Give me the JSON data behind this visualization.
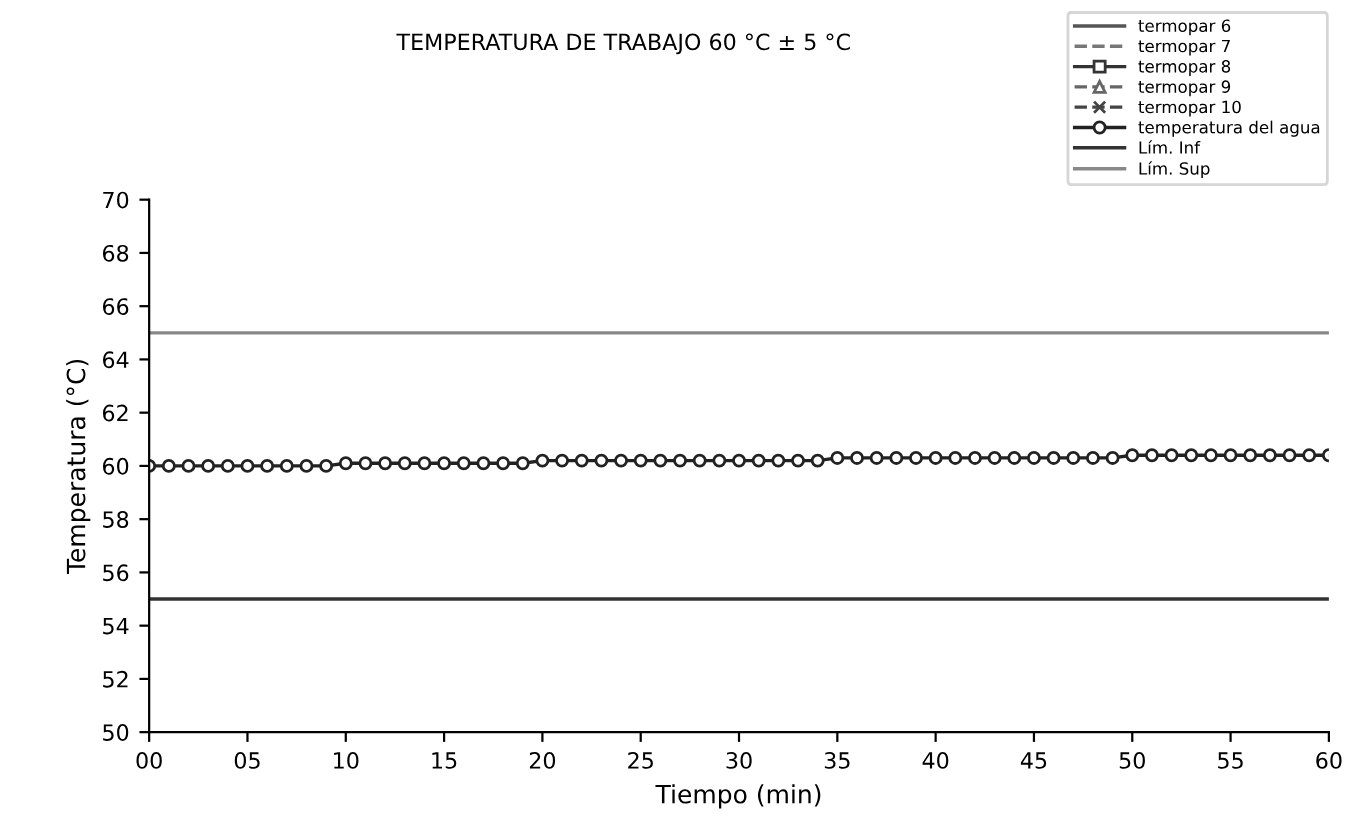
{
  "chart_data": {
    "type": "line",
    "title": "TEMPERATURA DE TRABAJO 60 °C ± 5 °C",
    "xlabel": "Tiempo (min)",
    "ylabel": "Temperatura (°C)",
    "x": [
      0,
      1,
      2,
      3,
      4,
      5,
      6,
      7,
      8,
      9,
      10,
      11,
      12,
      13,
      14,
      15,
      16,
      17,
      18,
      19,
      20,
      21,
      22,
      23,
      24,
      25,
      26,
      27,
      28,
      29,
      30,
      31,
      32,
      33,
      34,
      35,
      36,
      37,
      38,
      39,
      40,
      41,
      42,
      43,
      44,
      45,
      46,
      47,
      48,
      49,
      50,
      51,
      52,
      53,
      54,
      55,
      56,
      57,
      58,
      59,
      60
    ],
    "xlim": [
      0,
      60
    ],
    "xticks": [
      {
        "value": 0,
        "label": "00"
      },
      {
        "value": 5,
        "label": "05"
      },
      10,
      15,
      20,
      25,
      30,
      35,
      40,
      45,
      50,
      55,
      60
    ],
    "ylim": [
      50,
      70
    ],
    "yticks": [
      50,
      52,
      54,
      56,
      58,
      60,
      62,
      64,
      66,
      68,
      70
    ],
    "grid": false,
    "legend": "top right",
    "series": [
      {
        "name": "termopar 6",
        "color": "#555555",
        "marker": "none",
        "line_style": "solid",
        "values": [
          null,
          null,
          null,
          null,
          null,
          null,
          null,
          null,
          null,
          null,
          null,
          null,
          null,
          null,
          null,
          null,
          null,
          null,
          null,
          null,
          null,
          null,
          null,
          null,
          null,
          null,
          null,
          null,
          null,
          null,
          null,
          null,
          null,
          null,
          null,
          null,
          null,
          null,
          null,
          null,
          null,
          null,
          null,
          null,
          null,
          null,
          null,
          null,
          null,
          null,
          null,
          null,
          null,
          null,
          null,
          null,
          null,
          null,
          null,
          null,
          null
        ]
      },
      {
        "name": "termopar 7",
        "color": "#777777",
        "marker": "none",
        "line_style": "dashed",
        "values": [
          null,
          null,
          null,
          null,
          null,
          null,
          null,
          null,
          null,
          null,
          null,
          null,
          null,
          null,
          null,
          null,
          null,
          null,
          null,
          null,
          null,
          null,
          null,
          null,
          null,
          null,
          null,
          null,
          null,
          null,
          null,
          null,
          null,
          null,
          null,
          null,
          null,
          null,
          null,
          null,
          null,
          null,
          null,
          null,
          null,
          null,
          null,
          null,
          null,
          null,
          null,
          null,
          null,
          null,
          null,
          null,
          null,
          null,
          null,
          null,
          null
        ]
      },
      {
        "name": "termopar 8",
        "color": "#333333",
        "marker": "square",
        "line_style": "solid",
        "values": [
          null,
          null,
          null,
          null,
          null,
          null,
          null,
          null,
          null,
          null,
          null,
          null,
          null,
          null,
          null,
          null,
          null,
          null,
          null,
          null,
          null,
          null,
          null,
          null,
          null,
          null,
          null,
          null,
          null,
          null,
          null,
          null,
          null,
          null,
          null,
          null,
          null,
          null,
          null,
          null,
          null,
          null,
          null,
          null,
          null,
          null,
          null,
          null,
          null,
          null,
          null,
          null,
          null,
          null,
          null,
          null,
          null,
          null,
          null,
          null,
          null
        ]
      },
      {
        "name": "termopar 9",
        "color": "#666666",
        "marker": "triangle",
        "line_style": "dashed",
        "values": [
          null,
          null,
          null,
          null,
          null,
          null,
          null,
          null,
          null,
          null,
          null,
          null,
          null,
          null,
          null,
          null,
          null,
          null,
          null,
          null,
          null,
          null,
          null,
          null,
          null,
          null,
          null,
          null,
          null,
          null,
          null,
          null,
          null,
          null,
          null,
          null,
          null,
          null,
          null,
          null,
          null,
          null,
          null,
          null,
          null,
          null,
          null,
          null,
          null,
          null,
          null,
          null,
          null,
          null,
          null,
          null,
          null,
          null,
          null,
          null,
          null
        ]
      },
      {
        "name": "termopar 10",
        "color": "#444444",
        "marker": "cross",
        "line_style": "dashed",
        "values": [
          null,
          null,
          null,
          null,
          null,
          null,
          null,
          null,
          null,
          null,
          null,
          null,
          null,
          null,
          null,
          null,
          null,
          null,
          null,
          null,
          null,
          null,
          null,
          null,
          null,
          null,
          null,
          null,
          null,
          null,
          null,
          null,
          null,
          null,
          null,
          null,
          null,
          null,
          null,
          null,
          null,
          null,
          null,
          null,
          null,
          null,
          null,
          null,
          null,
          null,
          null,
          null,
          null,
          null,
          null,
          null,
          null,
          null,
          null,
          null,
          null
        ]
      },
      {
        "name": "temperatura del agua",
        "color": "#222222",
        "marker": "circle",
        "line_style": "solid",
        "values": [
          60.0,
          60.0,
          60.0,
          60.0,
          60.0,
          60.0,
          60.0,
          60.0,
          60.0,
          60.0,
          60.1,
          60.1,
          60.1,
          60.1,
          60.1,
          60.1,
          60.1,
          60.1,
          60.1,
          60.1,
          60.2,
          60.2,
          60.2,
          60.2,
          60.2,
          60.2,
          60.2,
          60.2,
          60.2,
          60.2,
          60.2,
          60.2,
          60.2,
          60.2,
          60.2,
          60.3,
          60.3,
          60.3,
          60.3,
          60.3,
          60.3,
          60.3,
          60.3,
          60.3,
          60.3,
          60.3,
          60.3,
          60.3,
          60.3,
          60.3,
          60.4,
          60.4,
          60.4,
          60.4,
          60.4,
          60.4,
          60.4,
          60.4,
          60.4,
          60.4,
          60.4
        ]
      }
    ],
    "ref_lines": [
      {
        "axis": "y",
        "value": 55,
        "label": "Lím. Inf",
        "color": "#333333",
        "line_style": "solid"
      },
      {
        "axis": "y",
        "value": 65,
        "label": "Lím. Sup",
        "color": "#888888",
        "line_style": "solid"
      }
    ]
  }
}
